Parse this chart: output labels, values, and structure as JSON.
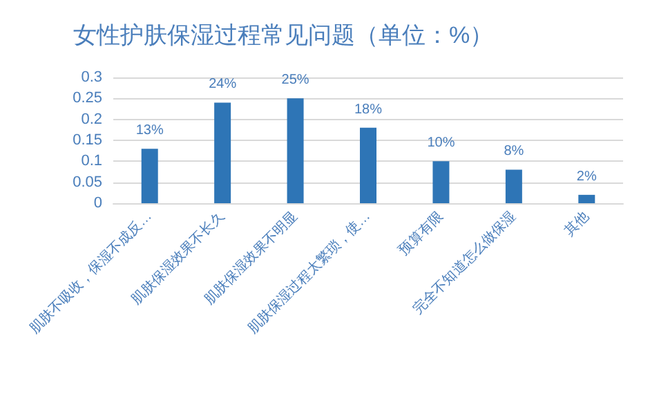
{
  "chart_data": {
    "type": "bar",
    "title": "女性护肤保湿过程常见问题（单位：%）",
    "categories": [
      "肌肤不吸收，保湿不成反…",
      "肌肤保湿效果不长久",
      "肌肤保湿效果不明显",
      "肌肤保湿过程太繁琐，使…",
      "预算有限",
      "完全不知道怎么做保湿",
      "其他"
    ],
    "values": [
      0.13,
      0.24,
      0.25,
      0.18,
      0.1,
      0.08,
      0.02
    ],
    "value_labels": [
      "13%",
      "24%",
      "25%",
      "18%",
      "10%",
      "8%",
      "2%"
    ],
    "color": "#2e75b6",
    "ylim": [
      0,
      0.3
    ],
    "yticks": [
      0,
      0.05,
      0.1,
      0.15,
      0.2,
      0.25,
      0.3
    ],
    "grid": "y"
  }
}
